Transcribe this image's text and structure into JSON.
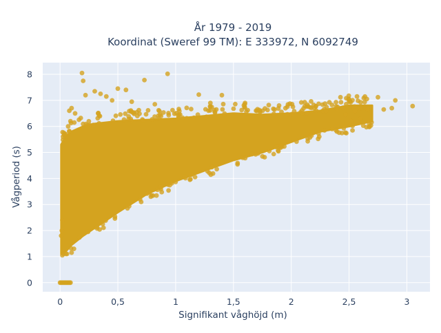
{
  "chart_data": {
    "type": "scatter",
    "title_lines": [
      "År 1979 - 2019",
      "Koordinat (Sweref 99 TM): E 333972, N 6092749"
    ],
    "xlabel": "Signifikant våghöjd (m)",
    "ylabel": "Vågperiod (s)",
    "xlim": [
      -0.15,
      3.2
    ],
    "ylim": [
      -0.35,
      8.45
    ],
    "x_ticks": [
      0,
      0.5,
      1,
      1.5,
      2,
      2.5,
      3
    ],
    "x_tick_labels": [
      "0",
      "0,5",
      "1",
      "1,5",
      "2",
      "2,5",
      "3"
    ],
    "y_ticks": [
      0,
      1,
      2,
      3,
      4,
      5,
      6,
      7,
      8
    ],
    "y_tick_labels": [
      "0",
      "1",
      "2",
      "3",
      "4",
      "5",
      "6",
      "7",
      "8"
    ],
    "grid": true,
    "legend": "none",
    "series": [
      {
        "marker_color": "#d4a31f",
        "dense_envelope": [
          {
            "x": 0.01,
            "y_low": 1.1,
            "y_high": 5.3
          },
          {
            "x": 0.05,
            "y_low": 1.2,
            "y_high": 5.6
          },
          {
            "x": 0.1,
            "y_low": 1.45,
            "y_high": 5.8
          },
          {
            "x": 0.2,
            "y_low": 1.8,
            "y_high": 6.0
          },
          {
            "x": 0.3,
            "y_low": 2.1,
            "y_high": 6.1
          },
          {
            "x": 0.5,
            "y_low": 2.7,
            "y_high": 6.2
          },
          {
            "x": 0.75,
            "y_low": 3.4,
            "y_high": 6.25
          },
          {
            "x": 1.0,
            "y_low": 3.9,
            "y_high": 6.3
          },
          {
            "x": 1.25,
            "y_low": 4.3,
            "y_high": 6.4
          },
          {
            "x": 1.5,
            "y_low": 4.7,
            "y_high": 6.5
          },
          {
            "x": 1.75,
            "y_low": 5.0,
            "y_high": 6.45
          },
          {
            "x": 2.0,
            "y_low": 5.4,
            "y_high": 6.5
          },
          {
            "x": 2.25,
            "y_low": 5.8,
            "y_high": 6.6
          },
          {
            "x": 2.5,
            "y_low": 6.0,
            "y_high": 6.8
          },
          {
            "x": 2.7,
            "y_low": 6.2,
            "y_high": 6.8
          }
        ],
        "outliers": [
          [
            0.19,
            8.05
          ],
          [
            0.93,
            8.02
          ],
          [
            0.73,
            7.78
          ],
          [
            0.2,
            7.75
          ],
          [
            0.5,
            7.45
          ],
          [
            0.3,
            7.35
          ],
          [
            0.57,
            7.4
          ],
          [
            0.4,
            7.15
          ],
          [
            0.35,
            7.25
          ],
          [
            0.22,
            7.2
          ],
          [
            1.2,
            7.22
          ],
          [
            1.4,
            7.2
          ],
          [
            0.45,
            7.0
          ],
          [
            0.62,
            6.95
          ],
          [
            0.82,
            6.85
          ],
          [
            1.3,
            6.9
          ],
          [
            2.75,
            7.12
          ],
          [
            2.5,
            6.95
          ],
          [
            3.05,
            6.78
          ],
          [
            2.9,
            7.0
          ],
          [
            2.87,
            6.7
          ],
          [
            2.66,
            6.65
          ],
          [
            2.55,
            6.6
          ],
          [
            2.47,
            6.45
          ],
          [
            2.6,
            6.7
          ],
          [
            2.4,
            6.75
          ],
          [
            2.8,
            6.65
          ],
          [
            0.08,
            6.6
          ],
          [
            0.1,
            6.7
          ],
          [
            0.13,
            6.5
          ],
          [
            0.07,
            6.0
          ],
          [
            0.05,
            5.7
          ],
          [
            0.09,
            6.2
          ],
          [
            1.6,
            6.9
          ],
          [
            1.95,
            6.7
          ],
          [
            2.2,
            6.7
          ],
          [
            2.3,
            6.6
          ],
          [
            2.6,
            6.3
          ],
          [
            2.52,
            6.2
          ],
          [
            0.02,
            1.05
          ],
          [
            0.05,
            1.1
          ],
          [
            0.06,
            1.1
          ],
          [
            0.1,
            1.15
          ],
          [
            0.12,
            1.3
          ],
          [
            0.02,
            2.4
          ],
          [
            0.015,
            2.0
          ],
          [
            0.01,
            1.8
          ]
        ],
        "zero_period_points": [
          [
            0.0,
            0
          ],
          [
            0.01,
            0
          ],
          [
            0.02,
            0
          ],
          [
            0.03,
            0
          ],
          [
            0.04,
            0
          ],
          [
            0.05,
            0
          ],
          [
            0.06,
            0
          ],
          [
            0.07,
            0
          ],
          [
            0.08,
            0
          ],
          [
            0.09,
            0
          ]
        ]
      }
    ]
  }
}
